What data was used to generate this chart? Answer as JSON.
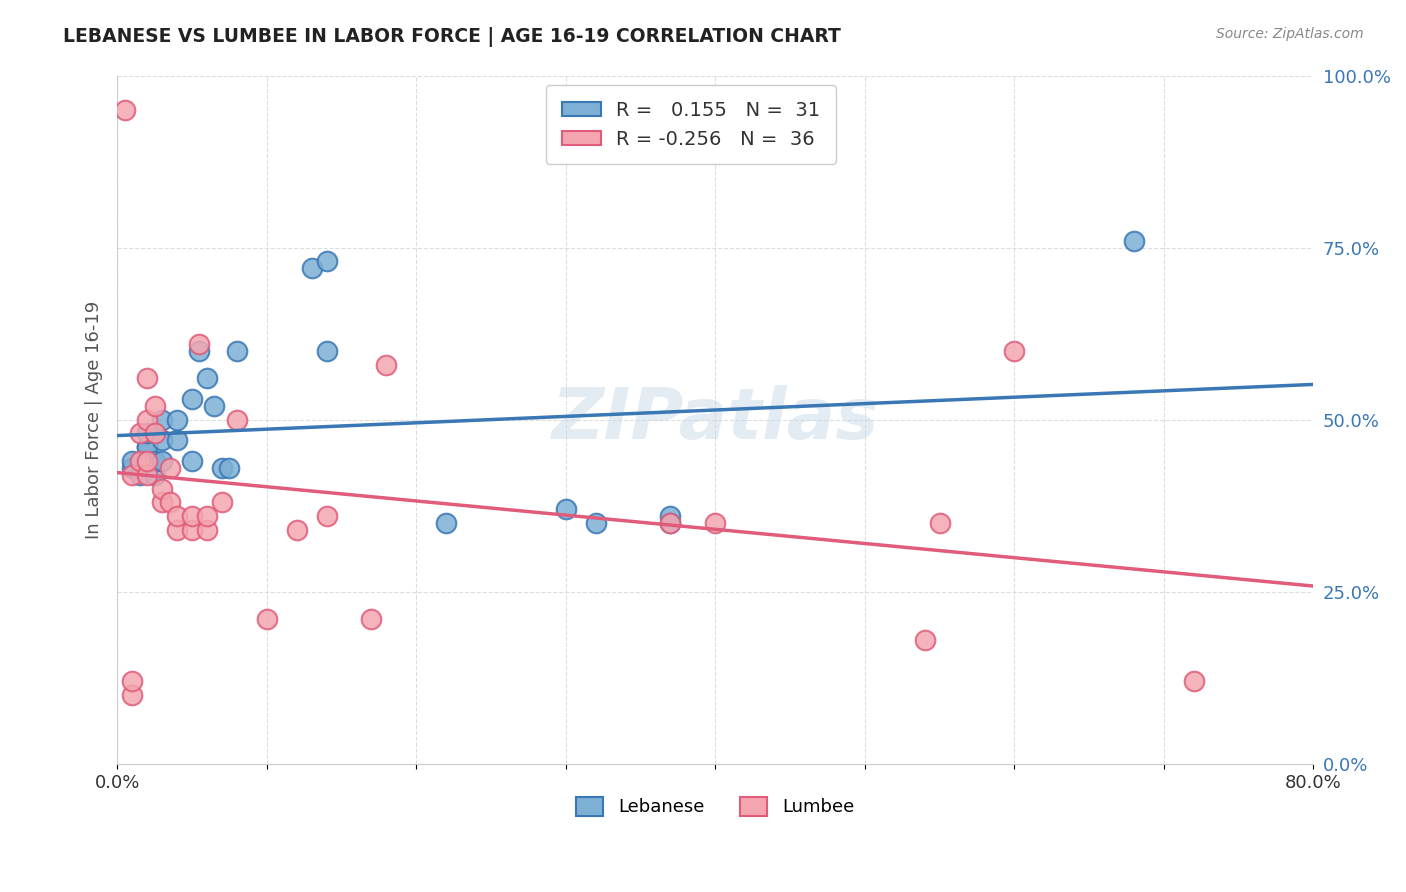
{
  "title": "LEBANESE VS LUMBEE IN LABOR FORCE | AGE 16-19 CORRELATION CHART",
  "source": "Source: ZipAtlas.com",
  "ylabel": "In Labor Force | Age 16-19",
  "xlim": [
    0.0,
    0.8
  ],
  "ylim": [
    0.0,
    1.0
  ],
  "xticks": [
    0.0,
    0.1,
    0.2,
    0.3,
    0.4,
    0.5,
    0.6,
    0.7,
    0.8
  ],
  "ytick_labels_right": [
    "0.0%",
    "25.0%",
    "50.0%",
    "75.0%",
    "100.0%"
  ],
  "yticks": [
    0.0,
    0.25,
    0.5,
    0.75,
    1.0
  ],
  "lebanese_R": 0.155,
  "lebanese_N": 31,
  "lumbee_R": -0.256,
  "lumbee_N": 36,
  "lebanese_color": "#7EB0D5",
  "lumbee_color": "#F4A6B0",
  "lebanese_line_color": "#3A78B5",
  "lumbee_line_color": "#E05C7A",
  "watermark": "ZIPatlas",
  "lebanese_x": [
    0.01,
    0.01,
    0.015,
    0.02,
    0.02,
    0.02,
    0.025,
    0.025,
    0.025,
    0.03,
    0.03,
    0.03,
    0.04,
    0.04,
    0.05,
    0.05,
    0.055,
    0.06,
    0.065,
    0.07,
    0.075,
    0.08,
    0.13,
    0.14,
    0.14,
    0.22,
    0.3,
    0.32,
    0.37,
    0.37,
    0.68
  ],
  "lebanese_y": [
    0.43,
    0.44,
    0.42,
    0.46,
    0.46,
    0.48,
    0.42,
    0.44,
    0.48,
    0.44,
    0.47,
    0.5,
    0.47,
    0.5,
    0.44,
    0.53,
    0.6,
    0.56,
    0.52,
    0.43,
    0.43,
    0.6,
    0.72,
    0.73,
    0.6,
    0.35,
    0.37,
    0.35,
    0.36,
    0.35,
    0.76
  ],
  "lumbee_x": [
    0.005,
    0.01,
    0.01,
    0.01,
    0.015,
    0.015,
    0.02,
    0.02,
    0.02,
    0.02,
    0.025,
    0.025,
    0.03,
    0.03,
    0.035,
    0.035,
    0.04,
    0.04,
    0.05,
    0.05,
    0.055,
    0.06,
    0.06,
    0.07,
    0.08,
    0.1,
    0.12,
    0.14,
    0.17,
    0.18,
    0.37,
    0.4,
    0.54,
    0.55,
    0.6,
    0.72
  ],
  "lumbee_y": [
    0.95,
    0.1,
    0.12,
    0.42,
    0.44,
    0.48,
    0.42,
    0.44,
    0.5,
    0.56,
    0.48,
    0.52,
    0.38,
    0.4,
    0.38,
    0.43,
    0.34,
    0.36,
    0.34,
    0.36,
    0.61,
    0.34,
    0.36,
    0.38,
    0.5,
    0.21,
    0.34,
    0.36,
    0.21,
    0.58,
    0.35,
    0.35,
    0.18,
    0.35,
    0.6,
    0.12
  ],
  "background_color": "#FFFFFF",
  "grid_color": "#DDDDDD"
}
